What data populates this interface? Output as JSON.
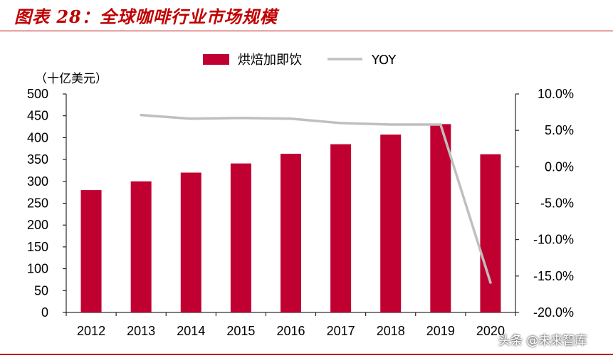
{
  "figure": {
    "title": "图表 28：全球咖啡行业市场规模"
  },
  "watermark": "头条 @未来智库",
  "chart_data": {
    "type": "bar",
    "categories": [
      "2012",
      "2013",
      "2014",
      "2015",
      "2016",
      "2017",
      "2018",
      "2019",
      "2020"
    ],
    "series": [
      {
        "name": "烘焙加即饮",
        "type": "bar",
        "axis": "left",
        "color": "#c00030",
        "values": [
          280,
          300,
          320,
          341,
          363,
          385,
          407,
          431,
          362
        ]
      },
      {
        "name": "YOY",
        "type": "line",
        "axis": "right",
        "color": "#bfbfbf",
        "values": [
          null,
          7.1,
          6.6,
          6.7,
          6.6,
          6.0,
          5.8,
          5.8,
          -15.9
        ]
      }
    ],
    "y_left": {
      "unit_label": "（十亿美元）",
      "ylim": [
        0,
        500
      ],
      "ticks": [
        "0",
        "50",
        "100",
        "150",
        "200",
        "250",
        "300",
        "350",
        "400",
        "450",
        "500"
      ]
    },
    "y_right": {
      "ylim": [
        -20,
        10
      ],
      "ticks": [
        "-20.0%",
        "-15.0%",
        "-10.0%",
        "-5.0%",
        "0.0%",
        "5.0%",
        "10.0%"
      ]
    },
    "legend_position": "top-center",
    "grid": false
  }
}
